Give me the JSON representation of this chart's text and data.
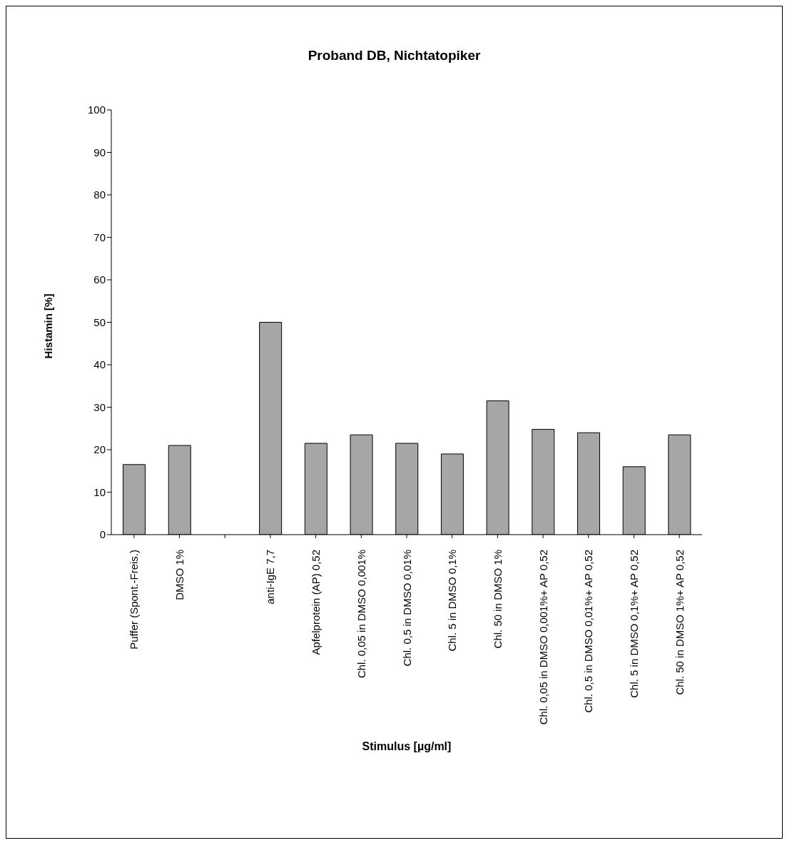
{
  "chart_data": {
    "type": "bar",
    "title": "Proband DB, Nichtatopiker",
    "xlabel": "Stimulus [µg/ml]",
    "ylabel": "Histamin [%]",
    "categories": [
      "Puffer (Spont.-Freis.)",
      "DMSO 1%",
      null,
      "anti-IgE 7,7",
      "Apfelprotein (AP) 0,52",
      "Chl. 0,05 in DMSO 0,001%",
      "Chl. 0,5 in DMSO 0,01%",
      "Chl. 5 in DMSO 0,1%",
      "Chl. 50 in DMSO 1%",
      "Chl. 0,05 in DMSO 0,001%+ AP 0,52",
      "Chl. 0,5 in DMSO 0,01%+ AP 0,52",
      "Chl. 5 in DMSO 0,1%+ AP 0,52",
      "Chl. 50 in DMSO 1%+ AP 0,52"
    ],
    "values": [
      16.5,
      21,
      null,
      50,
      21.5,
      23.5,
      21.5,
      19,
      31.5,
      24.8,
      24,
      16,
      23.5
    ],
    "color": "#a6a6a6",
    "ylim": [
      0,
      100
    ],
    "yticks": [
      0,
      10,
      20,
      30,
      40,
      50,
      60,
      70,
      80,
      90,
      100
    ],
    "grid": false
  }
}
